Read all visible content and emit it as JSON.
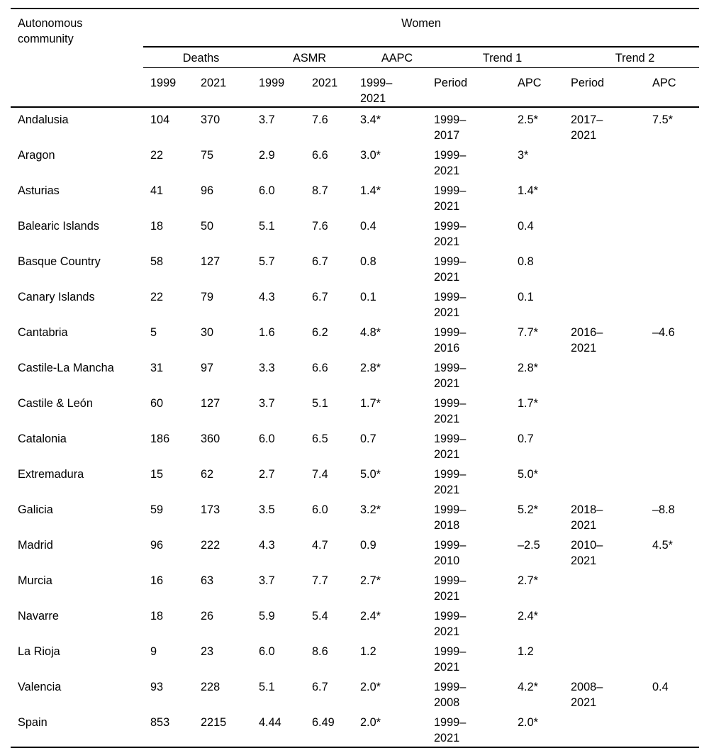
{
  "table": {
    "corner": "Autonomous|community",
    "title": "Women",
    "groups": [
      {
        "label": "Deaths"
      },
      {
        "label": "ASMR"
      },
      {
        "label": "AAPC"
      },
      {
        "label": "Trend 1"
      },
      {
        "label": "Trend 2"
      }
    ],
    "columns": [
      "1999",
      "2021",
      "1999",
      "2021",
      "1999–|2021",
      "Period",
      "APC",
      "Period",
      "APC"
    ],
    "rows": [
      [
        "Andalusia",
        "104",
        "370",
        "3.7",
        "7.6",
        "3.4*",
        "1999–|2017",
        "2.5*",
        "2017–|2021",
        "7.5*"
      ],
      [
        "Aragon",
        "22",
        "75",
        "2.9",
        "6.6",
        "3.0*",
        "1999–|2021",
        "3*",
        "",
        ""
      ],
      [
        "Asturias",
        "41",
        "96",
        "6.0",
        "8.7",
        "1.4*",
        "1999–|2021",
        "1.4*",
        "",
        ""
      ],
      [
        "Balearic Islands",
        "18",
        "50",
        "5.1",
        "7.6",
        "0.4",
        "1999–|2021",
        "0.4",
        "",
        ""
      ],
      [
        "Basque Country",
        "58",
        "127",
        "5.7",
        "6.7",
        "0.8",
        "1999–|2021",
        "0.8",
        "",
        ""
      ],
      [
        "Canary Islands",
        "22",
        "79",
        "4.3",
        "6.7",
        "0.1",
        "1999–|2021",
        "0.1",
        "",
        ""
      ],
      [
        "Cantabria",
        "5",
        "30",
        "1.6",
        "6.2",
        "4.8*",
        "1999–|2016",
        "7.7*",
        "2016–|2021",
        "–4.6"
      ],
      [
        "Castile-La Mancha",
        "31",
        "97",
        "3.3",
        "6.6",
        "2.8*",
        "1999–|2021",
        "2.8*",
        "",
        ""
      ],
      [
        "Castile & León",
        "60",
        "127",
        "3.7",
        "5.1",
        "1.7*",
        "1999–|2021",
        "1.7*",
        "",
        ""
      ],
      [
        "Catalonia",
        "186",
        "360",
        "6.0",
        "6.5",
        "0.7",
        "1999–|2021",
        "0.7",
        "",
        ""
      ],
      [
        "Extremadura",
        "15",
        "62",
        "2.7",
        "7.4",
        "5.0*",
        "1999–|2021",
        "5.0*",
        "",
        ""
      ],
      [
        "Galicia",
        "59",
        "173",
        "3.5",
        "6.0",
        "3.2*",
        "1999–|2018",
        "5.2*",
        "2018–|2021",
        "–8.8"
      ],
      [
        "Madrid",
        "96",
        "222",
        "4.3",
        "4.7",
        "0.9",
        "1999–|2010",
        "–2.5",
        "2010–|2021",
        "4.5*"
      ],
      [
        "Murcia",
        "16",
        "63",
        "3.7",
        "7.7",
        "2.7*",
        "1999–|2021",
        "2.7*",
        "",
        ""
      ],
      [
        "Navarre",
        "18",
        "26",
        "5.9",
        "5.4",
        "2.4*",
        "1999–|2021",
        "2.4*",
        "",
        ""
      ],
      [
        "La Rioja",
        "9",
        "23",
        "6.0",
        "8.6",
        "1.2",
        "1999–|2021",
        "1.2",
        "",
        ""
      ],
      [
        "Valencia",
        "93",
        "228",
        "5.1",
        "6.7",
        "2.0*",
        "1999–|2008",
        "4.2*",
        "2008–|2021",
        "0.4"
      ],
      [
        "Spain",
        "853",
        "2215",
        "4.44",
        "6.49",
        "2.0*",
        "1999–|2021",
        "2.0*",
        "",
        ""
      ]
    ],
    "colors": {
      "rule": "#000000",
      "text": "#000000",
      "background": "#ffffff"
    }
  }
}
